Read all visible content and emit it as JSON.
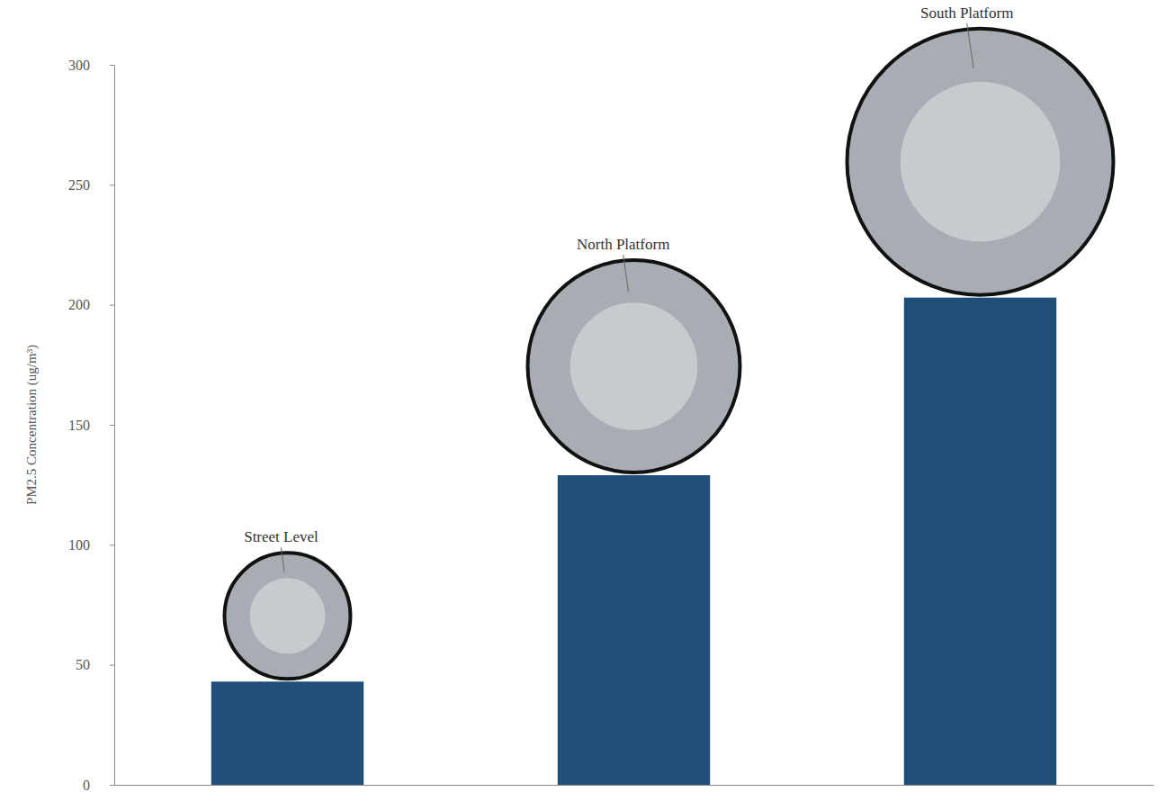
{
  "chart_data": {
    "type": "bar",
    "y_label": "PM2.5 Concentration (ug/m³)",
    "categories": [
      "Street Level",
      "North Platform",
      "South Platform"
    ],
    "values": [
      43,
      129,
      203
    ],
    "color": "#1f4e79",
    "ylim": [
      0,
      300
    ],
    "yticks": [
      0,
      50,
      100,
      150,
      200,
      250,
      300
    ],
    "grid": false,
    "tick_labels": "y"
  }
}
